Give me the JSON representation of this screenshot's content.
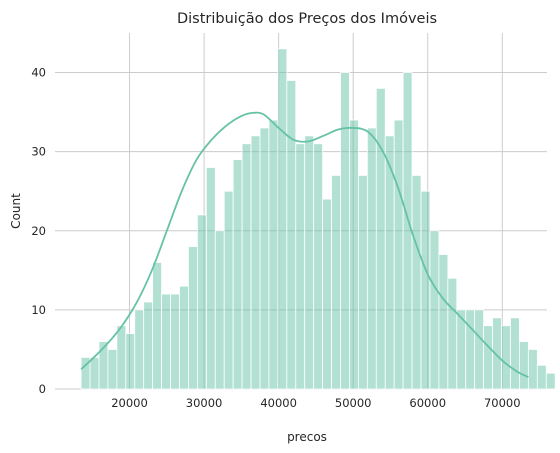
{
  "colors": {
    "bar_fill": "#66c2a5",
    "bar_opacity": 0.5,
    "kde_line": "#66c2a5",
    "grid": "#cccccc",
    "text": "#262626",
    "background": "#ffffff"
  },
  "chart_data": {
    "type": "bar",
    "title": "Distribuição dos Preços dos Imóveis",
    "xlabel": "precos",
    "ylabel": "Count",
    "xlim": [
      10000,
      76000
    ],
    "ylim": [
      0,
      45
    ],
    "grid": true,
    "legend": "none",
    "x_ticks": [
      20000,
      30000,
      40000,
      50000,
      60000,
      70000
    ],
    "x_tick_labels": [
      "20000",
      "30000",
      "40000",
      "50000",
      "60000",
      "70000"
    ],
    "y_ticks": [
      0,
      10,
      20,
      30,
      40
    ],
    "y_tick_labels": [
      "0",
      "10",
      "20",
      "30",
      "40"
    ],
    "bins": {
      "start": 13500,
      "width": 1200,
      "counts": [
        4,
        4,
        6,
        5,
        8,
        7,
        10,
        11,
        16,
        12,
        12,
        13,
        18,
        22,
        28,
        20,
        25,
        29,
        31,
        32,
        33,
        34,
        43,
        39,
        31,
        32,
        31,
        24,
        27,
        40,
        34,
        27,
        33,
        38,
        32,
        34,
        40,
        27,
        25,
        20,
        17,
        14,
        10,
        10,
        10,
        8,
        9,
        8,
        9,
        6,
        5,
        3,
        2
      ]
    },
    "kde": {
      "x": [
        13500,
        15000,
        17000,
        19000,
        21000,
        23000,
        25000,
        27000,
        29000,
        31000,
        33000,
        35000,
        36500,
        38000,
        40000,
        42000,
        44000,
        46000,
        48000,
        50000,
        52000,
        54000,
        56000,
        58000,
        60000,
        62000,
        64000,
        66000,
        68000,
        70000,
        72000,
        73500
      ],
      "y": [
        2.5,
        3.8,
        5.7,
        8,
        11,
        15,
        20,
        25,
        29,
        31.5,
        33.3,
        34.5,
        34.9,
        34.7,
        33,
        31.5,
        31.3,
        32,
        32.8,
        33,
        32.5,
        30,
        25.5,
        19.5,
        14.5,
        11.5,
        9.5,
        7.5,
        5.5,
        3.6,
        2.2,
        1.5
      ]
    }
  }
}
